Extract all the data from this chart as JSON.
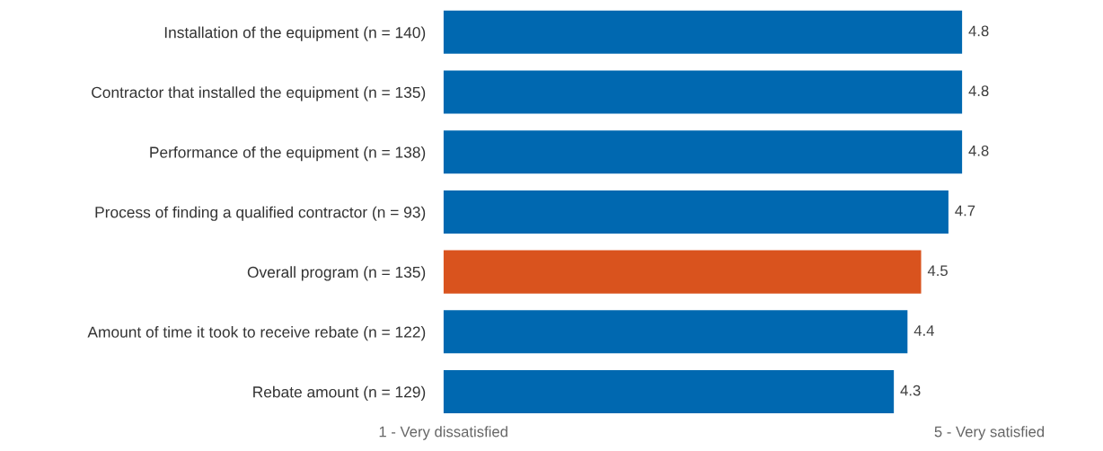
{
  "chart_data": {
    "type": "bar",
    "orientation": "horizontal",
    "categories": [
      "Installation of the equipment (n = 140)",
      "Contractor that installed the equipment (n = 135)",
      "Performance of the equipment (n = 138)",
      "Process of finding a qualified contractor (n = 93)",
      "Overall program (n = 135)",
      "Amount of time it took to receive rebate (n = 122)",
      "Rebate amount (n = 129)"
    ],
    "values": [
      4.8,
      4.8,
      4.8,
      4.7,
      4.5,
      4.4,
      4.3
    ],
    "colors": [
      "#0068b0",
      "#0068b0",
      "#0068b0",
      "#0068b0",
      "#d9531e",
      "#0068b0",
      "#0068b0"
    ],
    "xlim": [
      1,
      5
    ],
    "xticks": [
      {
        "value": 1,
        "label": "1 - Very dissatisfied"
      },
      {
        "value": 5,
        "label": "5 - Very satisfied"
      }
    ],
    "data_labels": true,
    "grid": false,
    "legend": false
  }
}
